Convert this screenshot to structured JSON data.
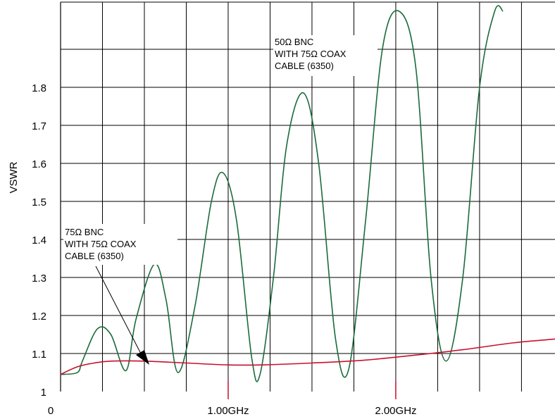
{
  "chart_data": {
    "type": "line",
    "title": "",
    "xlabel": "",
    "ylabel": "VSWR",
    "x_unit": "GHz",
    "xlim": [
      0,
      2.95
    ],
    "ylim": [
      1.0,
      2.0
    ],
    "grid": true,
    "legend": "none",
    "y_ticks": [
      "1",
      "1.1",
      "1.2",
      "1.3",
      "1.4",
      "1.5",
      "1.6",
      "1.7",
      "1.8"
    ],
    "x_ticks": [
      {
        "value": 0,
        "label": "0"
      },
      {
        "value": 1.0,
        "label": "1.00GHz"
      },
      {
        "value": 2.0,
        "label": "2.00GHz"
      }
    ],
    "series": [
      {
        "color": "#1a6b3c",
        "annotation": [
          "50Ω BNC",
          "WITH 75Ω COAX",
          "CABLE (6350)"
        ],
        "points": [
          [
            0.0,
            1.045
          ],
          [
            0.1,
            1.05
          ],
          [
            0.13,
            1.08
          ],
          [
            0.22,
            1.165
          ],
          [
            0.3,
            1.15
          ],
          [
            0.39,
            1.055
          ],
          [
            0.45,
            1.19
          ],
          [
            0.56,
            1.335
          ],
          [
            0.63,
            1.24
          ],
          [
            0.7,
            1.05
          ],
          [
            0.8,
            1.22
          ],
          [
            0.9,
            1.5
          ],
          [
            0.97,
            1.575
          ],
          [
            1.05,
            1.45
          ],
          [
            1.14,
            1.09
          ],
          [
            1.19,
            1.045
          ],
          [
            1.27,
            1.3
          ],
          [
            1.35,
            1.65
          ],
          [
            1.45,
            1.785
          ],
          [
            1.54,
            1.6
          ],
          [
            1.64,
            1.14
          ],
          [
            1.72,
            1.06
          ],
          [
            1.82,
            1.45
          ],
          [
            1.92,
            1.9
          ],
          [
            2.02,
            2.0
          ],
          [
            2.12,
            1.85
          ],
          [
            2.21,
            1.3
          ],
          [
            2.3,
            1.08
          ],
          [
            2.4,
            1.3
          ],
          [
            2.5,
            1.8
          ],
          [
            2.59,
            2.0
          ],
          [
            2.64,
            2.0
          ]
        ]
      },
      {
        "color": "#c8102e",
        "annotation": [
          "75Ω BNC",
          "WITH 75Ω COAX",
          "CABLE (6350)"
        ],
        "points": [
          [
            0.0,
            1.045
          ],
          [
            0.1,
            1.065
          ],
          [
            0.2,
            1.075
          ],
          [
            0.3,
            1.08
          ],
          [
            0.5,
            1.08
          ],
          [
            0.75,
            1.075
          ],
          [
            1.0,
            1.07
          ],
          [
            1.2,
            1.07
          ],
          [
            1.5,
            1.075
          ],
          [
            1.8,
            1.082
          ],
          [
            2.1,
            1.095
          ],
          [
            2.4,
            1.11
          ],
          [
            2.7,
            1.128
          ],
          [
            2.95,
            1.138
          ]
        ]
      }
    ]
  }
}
